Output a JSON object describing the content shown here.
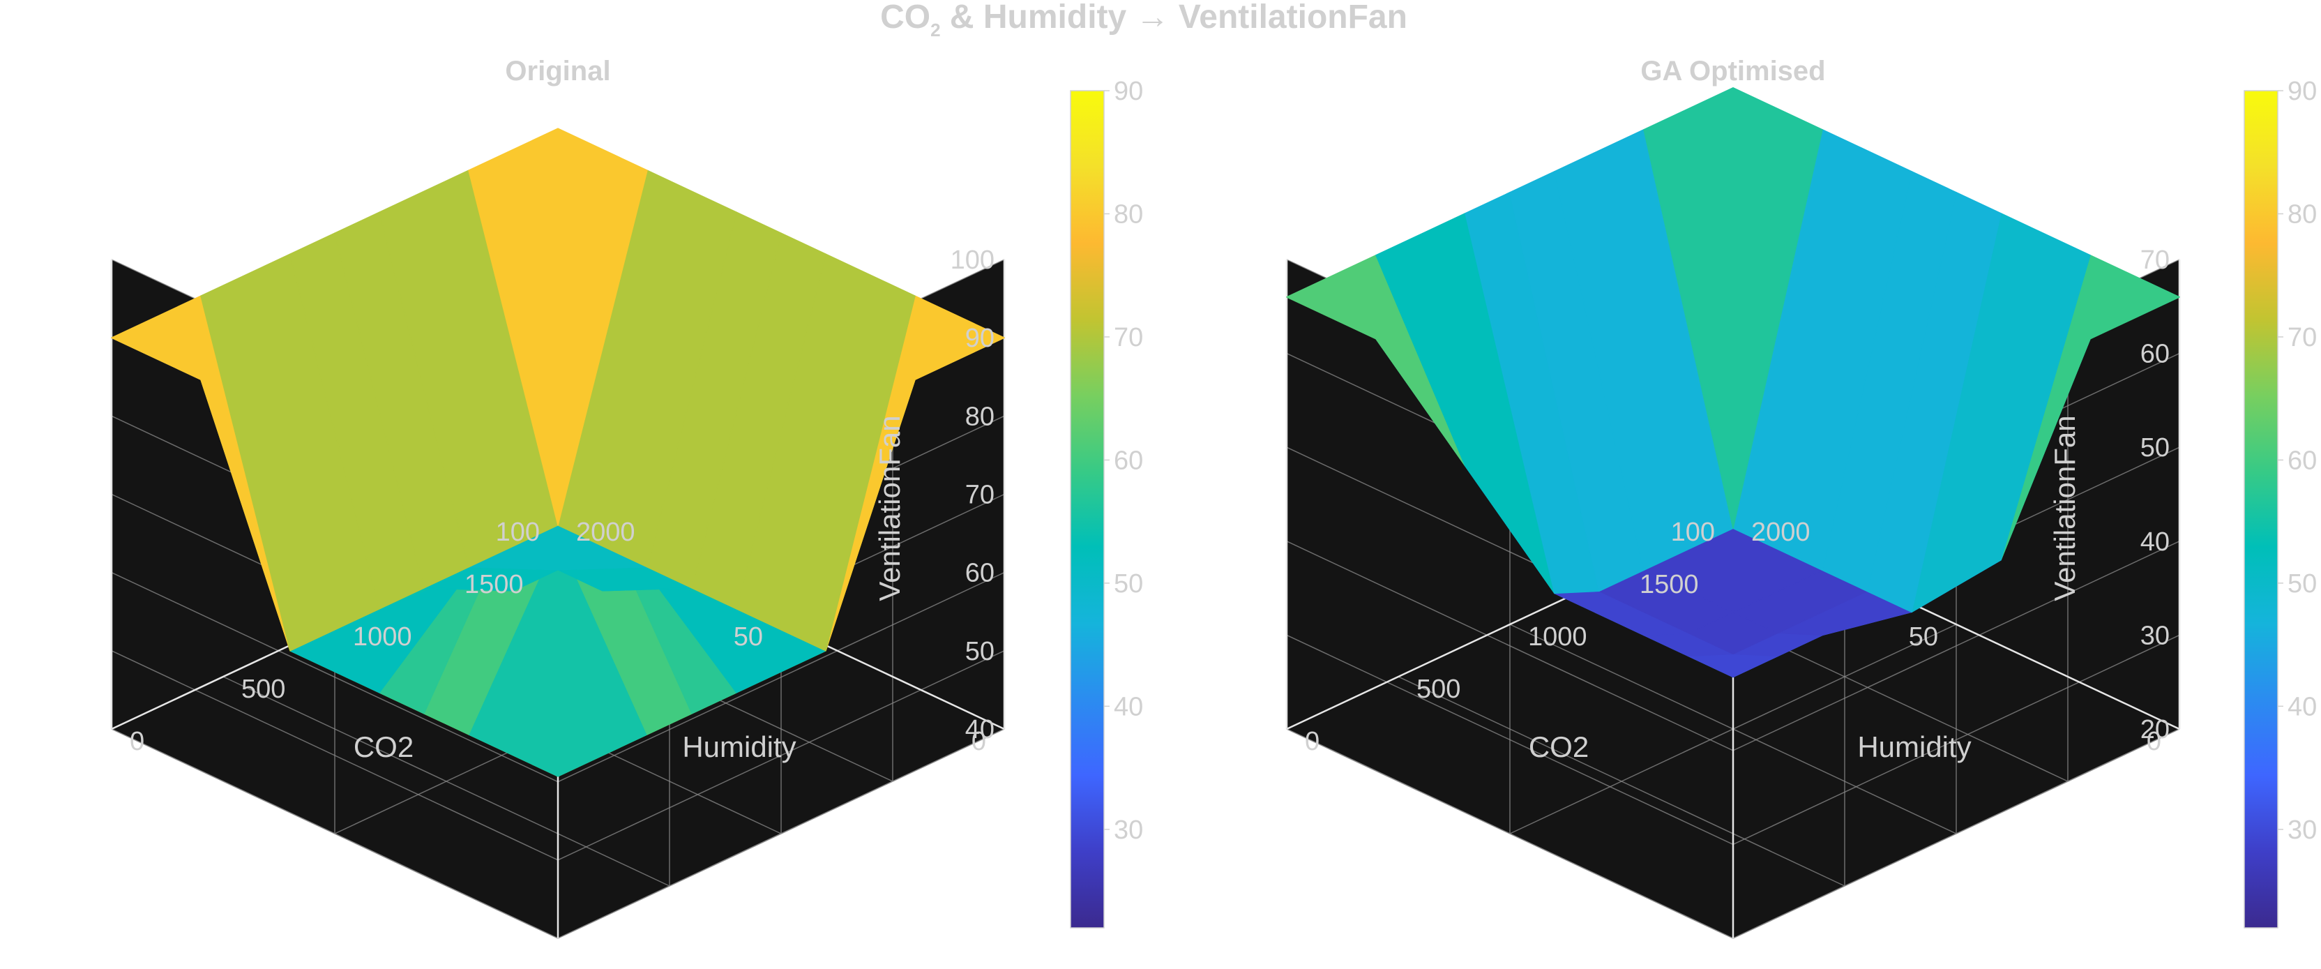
{
  "figure": {
    "title_main": "CO",
    "title_sub": "2",
    "title_rest": " & Humidity → VentilationFan"
  },
  "colors": {
    "page_bg": "#ffffff",
    "pane_bg": "#141414",
    "text": "#d0d0d0",
    "colormap": [
      "#3b2a8f",
      "#3e3fc8",
      "#3e66ff",
      "#2b8cf0",
      "#15b4db",
      "#00bfb8",
      "#37ca86",
      "#78cf5f",
      "#c2c431",
      "#fdb931",
      "#f4e02a",
      "#f8fa0d"
    ]
  },
  "chart_data": [
    {
      "type": "surface",
      "title": "Original",
      "xlabel": "Humidity",
      "ylabel": "CO2",
      "zlabel": "VentilationFan",
      "xlim": [
        0,
        100
      ],
      "ylim": [
        0,
        2000
      ],
      "zlim": [
        40,
        100
      ],
      "x_ticks": [
        0,
        50,
        100
      ],
      "y_ticks": [
        0,
        500,
        1000,
        1500,
        2000
      ],
      "z_ticks": [
        40,
        50,
        60,
        70,
        80,
        90,
        100
      ],
      "x": [
        0,
        20,
        40,
        50,
        60,
        80,
        100
      ],
      "y": [
        0,
        400,
        800,
        1000,
        1200,
        1600,
        2000
      ],
      "z": [
        [
          90,
          90,
          90,
          90,
          90,
          90,
          90
        ],
        [
          90,
          50,
          50,
          50,
          50,
          50,
          90
        ],
        [
          90,
          50,
          70,
          70,
          60,
          50,
          90
        ],
        [
          90,
          50,
          70,
          70,
          55,
          50,
          90
        ],
        [
          90,
          50,
          60,
          55,
          55,
          50,
          90
        ],
        [
          90,
          50,
          50,
          50,
          50,
          50,
          90
        ],
        [
          90,
          90,
          90,
          90,
          90,
          90,
          90
        ]
      ],
      "colorbar": {
        "ticks": [
          30,
          40,
          50,
          60,
          70,
          80,
          90
        ],
        "range": [
          22,
          90
        ]
      },
      "grid": true
    },
    {
      "type": "surface",
      "title": "GA Optimised",
      "xlabel": "Humidity",
      "ylabel": "CO2",
      "zlabel": "VentilationFan",
      "xlim": [
        0,
        100
      ],
      "ylim": [
        0,
        2000
      ],
      "zlim": [
        20,
        70
      ],
      "x_ticks": [
        0,
        50,
        100
      ],
      "y_ticks": [
        0,
        500,
        1000,
        1500,
        2000
      ],
      "z_ticks": [
        20,
        30,
        40,
        50,
        60,
        70
      ],
      "x": [
        0,
        20,
        40,
        50,
        60,
        80,
        100
      ],
      "y": [
        0,
        400,
        800,
        1000,
        1200,
        1600,
        2000
      ],
      "z": [
        [
          66,
          66,
          66,
          66,
          66,
          66,
          66
        ],
        [
          66,
          50,
          48,
          48,
          48,
          48,
          66
        ],
        [
          66,
          48,
          30,
          30,
          30,
          30,
          66
        ],
        [
          66,
          48,
          30,
          28,
          28,
          28,
          66
        ],
        [
          66,
          45,
          30,
          28,
          28,
          28,
          66
        ],
        [
          66,
          38,
          28,
          28,
          28,
          28,
          66
        ],
        [
          66,
          66,
          66,
          66,
          66,
          66,
          66
        ]
      ],
      "colorbar": {
        "ticks": [
          30,
          40,
          50,
          60,
          70,
          80,
          90
        ],
        "range": [
          22,
          90
        ]
      },
      "grid": true
    }
  ]
}
